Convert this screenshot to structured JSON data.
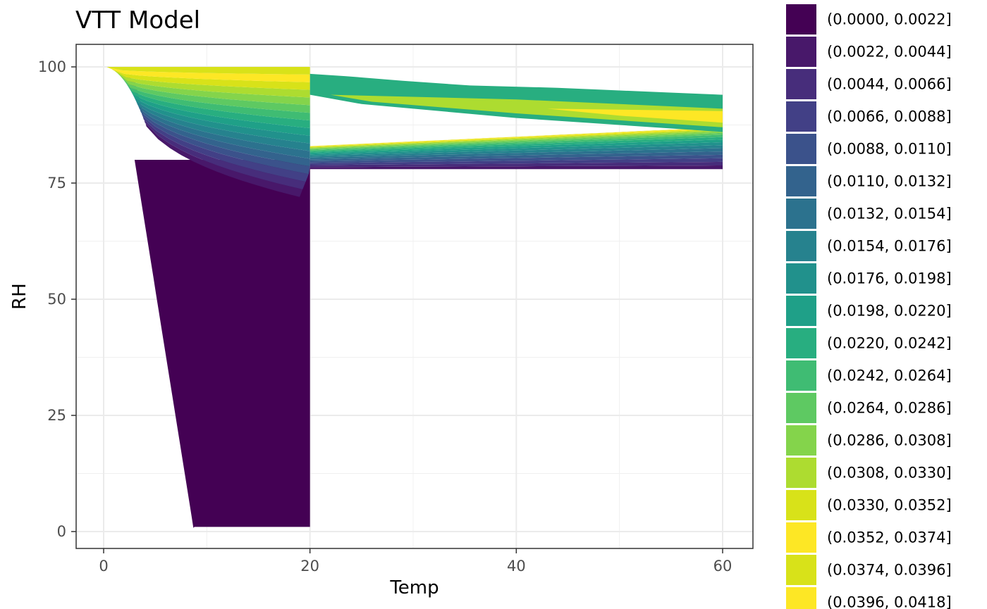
{
  "chart_data": {
    "type": "contour",
    "title": "VTT Model",
    "xlabel": "Temp",
    "ylabel": "RH",
    "xlim": [
      -5,
      60
    ],
    "ylim": [
      -4,
      105
    ],
    "x_ticks": [
      0,
      20,
      40,
      60
    ],
    "y_ticks": [
      0,
      25,
      50,
      75,
      100
    ],
    "grid": true,
    "legend_position": "right",
    "legend_entries": [
      {
        "label": "(0.0000, 0.0022]",
        "color": "#440154"
      },
      {
        "label": "(0.0022, 0.0044]",
        "color": "#48186a"
      },
      {
        "label": "(0.0044, 0.0066]",
        "color": "#472d7b"
      },
      {
        "label": "(0.0066, 0.0088]",
        "color": "#424086"
      },
      {
        "label": "(0.0088, 0.0110]",
        "color": "#3b528b"
      },
      {
        "label": "(0.0110, 0.0132]",
        "color": "#33638d"
      },
      {
        "label": "(0.0132, 0.0154]",
        "color": "#2c728e"
      },
      {
        "label": "(0.0154, 0.0176]",
        "color": "#26828e"
      },
      {
        "label": "(0.0176, 0.0198]",
        "color": "#21918c"
      },
      {
        "label": "(0.0198, 0.0220]",
        "color": "#1fa088"
      },
      {
        "label": "(0.0220, 0.0242]",
        "color": "#28ae80"
      },
      {
        "label": "(0.0242, 0.0264]",
        "color": "#3fbc73"
      },
      {
        "label": "(0.0264, 0.0286]",
        "color": "#5ec962"
      },
      {
        "label": "(0.0286, 0.0308]",
        "color": "#84d44b"
      },
      {
        "label": "(0.0308, 0.0330]",
        "color": "#addc30"
      },
      {
        "label": "(0.0330, 0.0352]",
        "color": "#d8e219"
      },
      {
        "label": "(0.0352, 0.0374]",
        "color": "#fde725"
      },
      {
        "label": "(0.0374, 0.0396]",
        "color": "#d8e219"
      },
      {
        "label": "(0.0396, 0.0418]",
        "color": "#fde725"
      }
    ]
  }
}
